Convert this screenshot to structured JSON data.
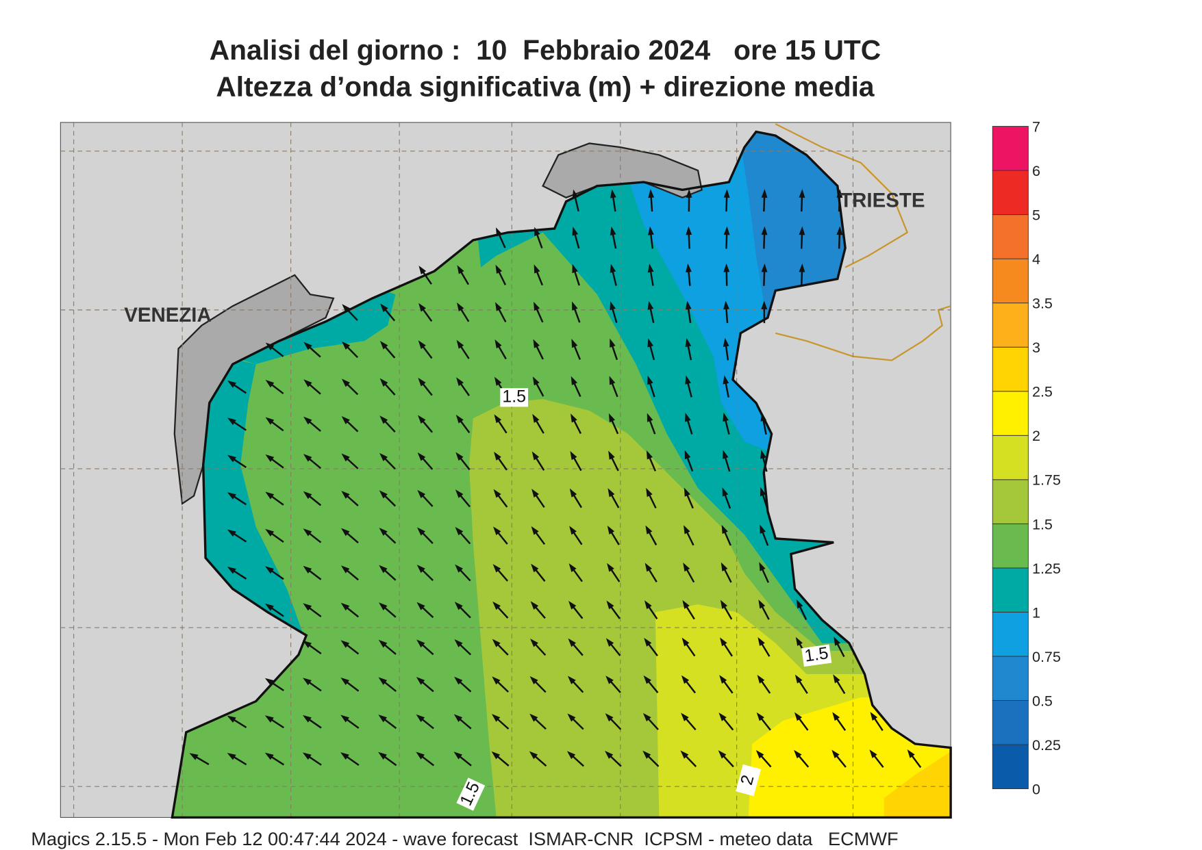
{
  "title": [
    "Analisi del giorno :  10  Febbraio 2024   ore 15 UTC",
    "Altezza d’onda significativa (m) + direzione media"
  ],
  "map": {
    "places": [
      "VENEZIA",
      "TRIESTE"
    ],
    "contour_labels": [
      "1.5",
      "1.5",
      "1.5",
      "2"
    ]
  },
  "colorbar": {
    "ticks": [
      0,
      0.25,
      0.5,
      0.75,
      1,
      1.25,
      1.5,
      1.75,
      2,
      2.5,
      3,
      3.5,
      4,
      5,
      6,
      7
    ],
    "colors": [
      "#0a5cab",
      "#1a72bf",
      "#1f88cf",
      "#0ea0e0",
      "#00aaa4",
      "#6abb4f",
      "#a5c83a",
      "#d5e022",
      "#fff000",
      "#ffd400",
      "#fdb01a",
      "#f68a1f",
      "#f3712a",
      "#ee2a24",
      "#ec1463"
    ]
  },
  "footer": "Magics 2.15.5 - Mon Feb 12 00:47:44 2024 - wave forecast  ISMAR-CNR  ICPSM - meteo data   ECMWF"
}
